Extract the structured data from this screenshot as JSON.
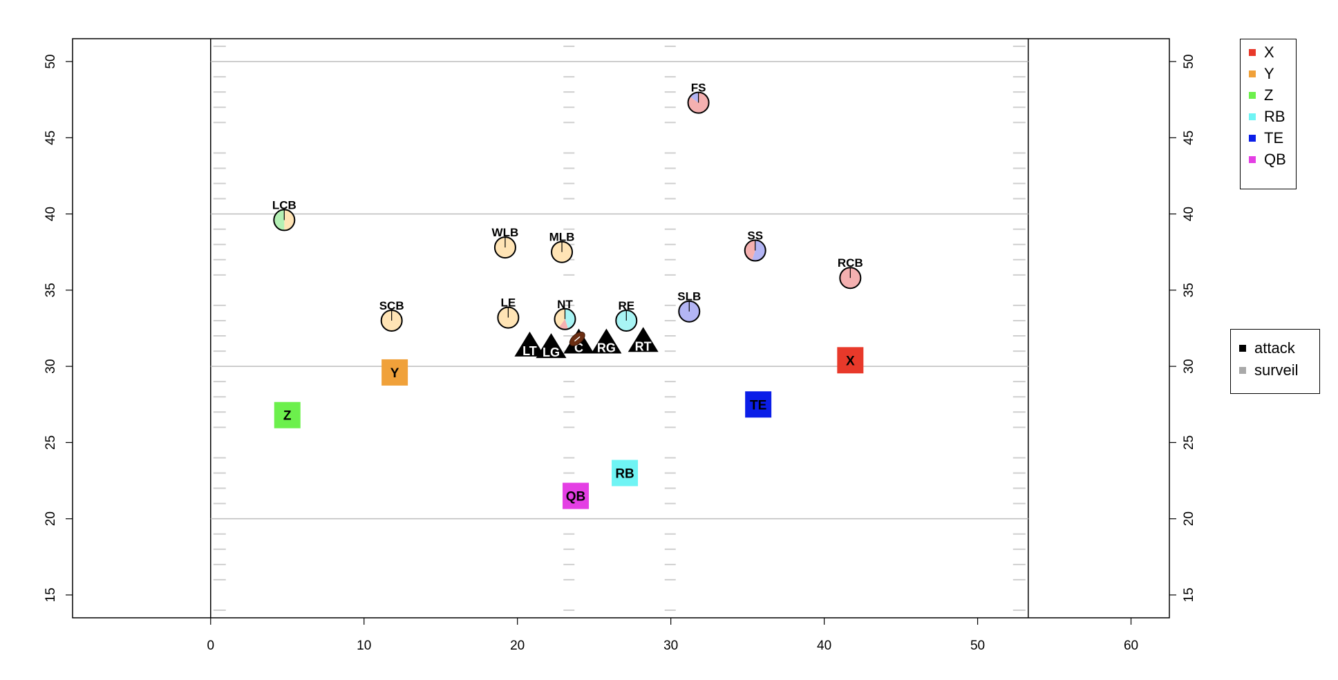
{
  "chart_data": {
    "type": "scatter",
    "title": "",
    "xlabel": "",
    "ylabel": "",
    "xlim": [
      -9,
      62.5
    ],
    "ylim": [
      13.5,
      51.5
    ],
    "x_ticks": [
      0,
      10,
      20,
      30,
      40,
      50,
      60
    ],
    "y_ticks": [
      15,
      20,
      25,
      30,
      35,
      40,
      45,
      50
    ],
    "sidelines_x": [
      0,
      53.3
    ],
    "yard_lines_y": [
      20,
      30,
      40,
      50
    ],
    "hash_x": [
      23.36,
      29.96
    ],
    "grid": false,
    "offense_players": [
      {
        "label": "X",
        "x": 41.7,
        "y": 30.4,
        "color": "#e8392a"
      },
      {
        "label": "Y",
        "x": 12.0,
        "y": 29.6,
        "color": "#f0a13a"
      },
      {
        "label": "Z",
        "x": 5.0,
        "y": 26.8,
        "color": "#6cf04c"
      },
      {
        "label": "RB",
        "x": 27.0,
        "y": 23.0,
        "color": "#6ff4f4"
      },
      {
        "label": "TE",
        "x": 35.7,
        "y": 27.5,
        "color": "#0b1ee8"
      },
      {
        "label": "QB",
        "x": 23.8,
        "y": 21.5,
        "color": "#e43fe4"
      }
    ],
    "linemen": [
      {
        "label": "LT",
        "x": 20.8,
        "y": 31.1
      },
      {
        "label": "LG",
        "x": 22.2,
        "y": 31.0
      },
      {
        "label": "C",
        "x": 24.0,
        "y": 31.3
      },
      {
        "label": "RG",
        "x": 25.8,
        "y": 31.3
      },
      {
        "label": "RT",
        "x": 28.2,
        "y": 31.4
      }
    ],
    "ball": {
      "x": 23.9,
      "y": 31.8
    },
    "defense_players": [
      {
        "label": "FS",
        "x": 31.8,
        "y": 47.3,
        "pie": [
          [
            "#f4b0b0",
            0.85
          ],
          [
            "#b3b5f4",
            0.15
          ]
        ]
      },
      {
        "label": "LCB",
        "x": 4.8,
        "y": 39.6,
        "pie": [
          [
            "#ffe4b5",
            0.5
          ],
          [
            "#b4f0b4",
            0.5
          ]
        ]
      },
      {
        "label": "WLB",
        "x": 19.2,
        "y": 37.8,
        "pie": [
          [
            "#ffe4b5",
            1.0
          ]
        ]
      },
      {
        "label": "MLB",
        "x": 22.9,
        "y": 37.5,
        "pie": [
          [
            "#ffe4b5",
            1.0
          ]
        ]
      },
      {
        "label": "SS",
        "x": 35.5,
        "y": 37.6,
        "pie": [
          [
            "#b3b5f4",
            0.55
          ],
          [
            "#f4b0b0",
            0.45
          ]
        ]
      },
      {
        "label": "RCB",
        "x": 41.7,
        "y": 35.8,
        "pie": [
          [
            "#f4b0b0",
            1.0
          ]
        ]
      },
      {
        "label": "SCB",
        "x": 11.8,
        "y": 33.0,
        "pie": [
          [
            "#ffe4b5",
            1.0
          ]
        ]
      },
      {
        "label": "LE",
        "x": 19.4,
        "y": 33.2,
        "pie": [
          [
            "#ffe4b5",
            1.0
          ]
        ]
      },
      {
        "label": "NT",
        "x": 23.1,
        "y": 33.1,
        "pie": [
          [
            "#a8f4f4",
            0.45
          ],
          [
            "#f4b0b0",
            0.15
          ],
          [
            "#ffe4b5",
            0.4
          ]
        ]
      },
      {
        "label": "RE",
        "x": 27.1,
        "y": 33.0,
        "pie": [
          [
            "#a8f4f4",
            1.0
          ]
        ]
      },
      {
        "label": "SLB",
        "x": 31.2,
        "y": 33.6,
        "pie": [
          [
            "#b3b5f4",
            1.0
          ]
        ]
      }
    ],
    "legend_routes": [
      {
        "label": "X",
        "color": "#e8392a"
      },
      {
        "label": "Y",
        "color": "#f0a13a"
      },
      {
        "label": "Z",
        "color": "#6cf04c"
      },
      {
        "label": "RB",
        "color": "#6ff4f4"
      },
      {
        "label": "TE",
        "color": "#0b1ee8"
      },
      {
        "label": "QB",
        "color": "#e43fe4"
      }
    ],
    "legend_roles": [
      {
        "label": "attack",
        "color": "#000000"
      },
      {
        "label": "surveil",
        "color": "#a9a9a9"
      }
    ],
    "legend_placement": "right"
  }
}
